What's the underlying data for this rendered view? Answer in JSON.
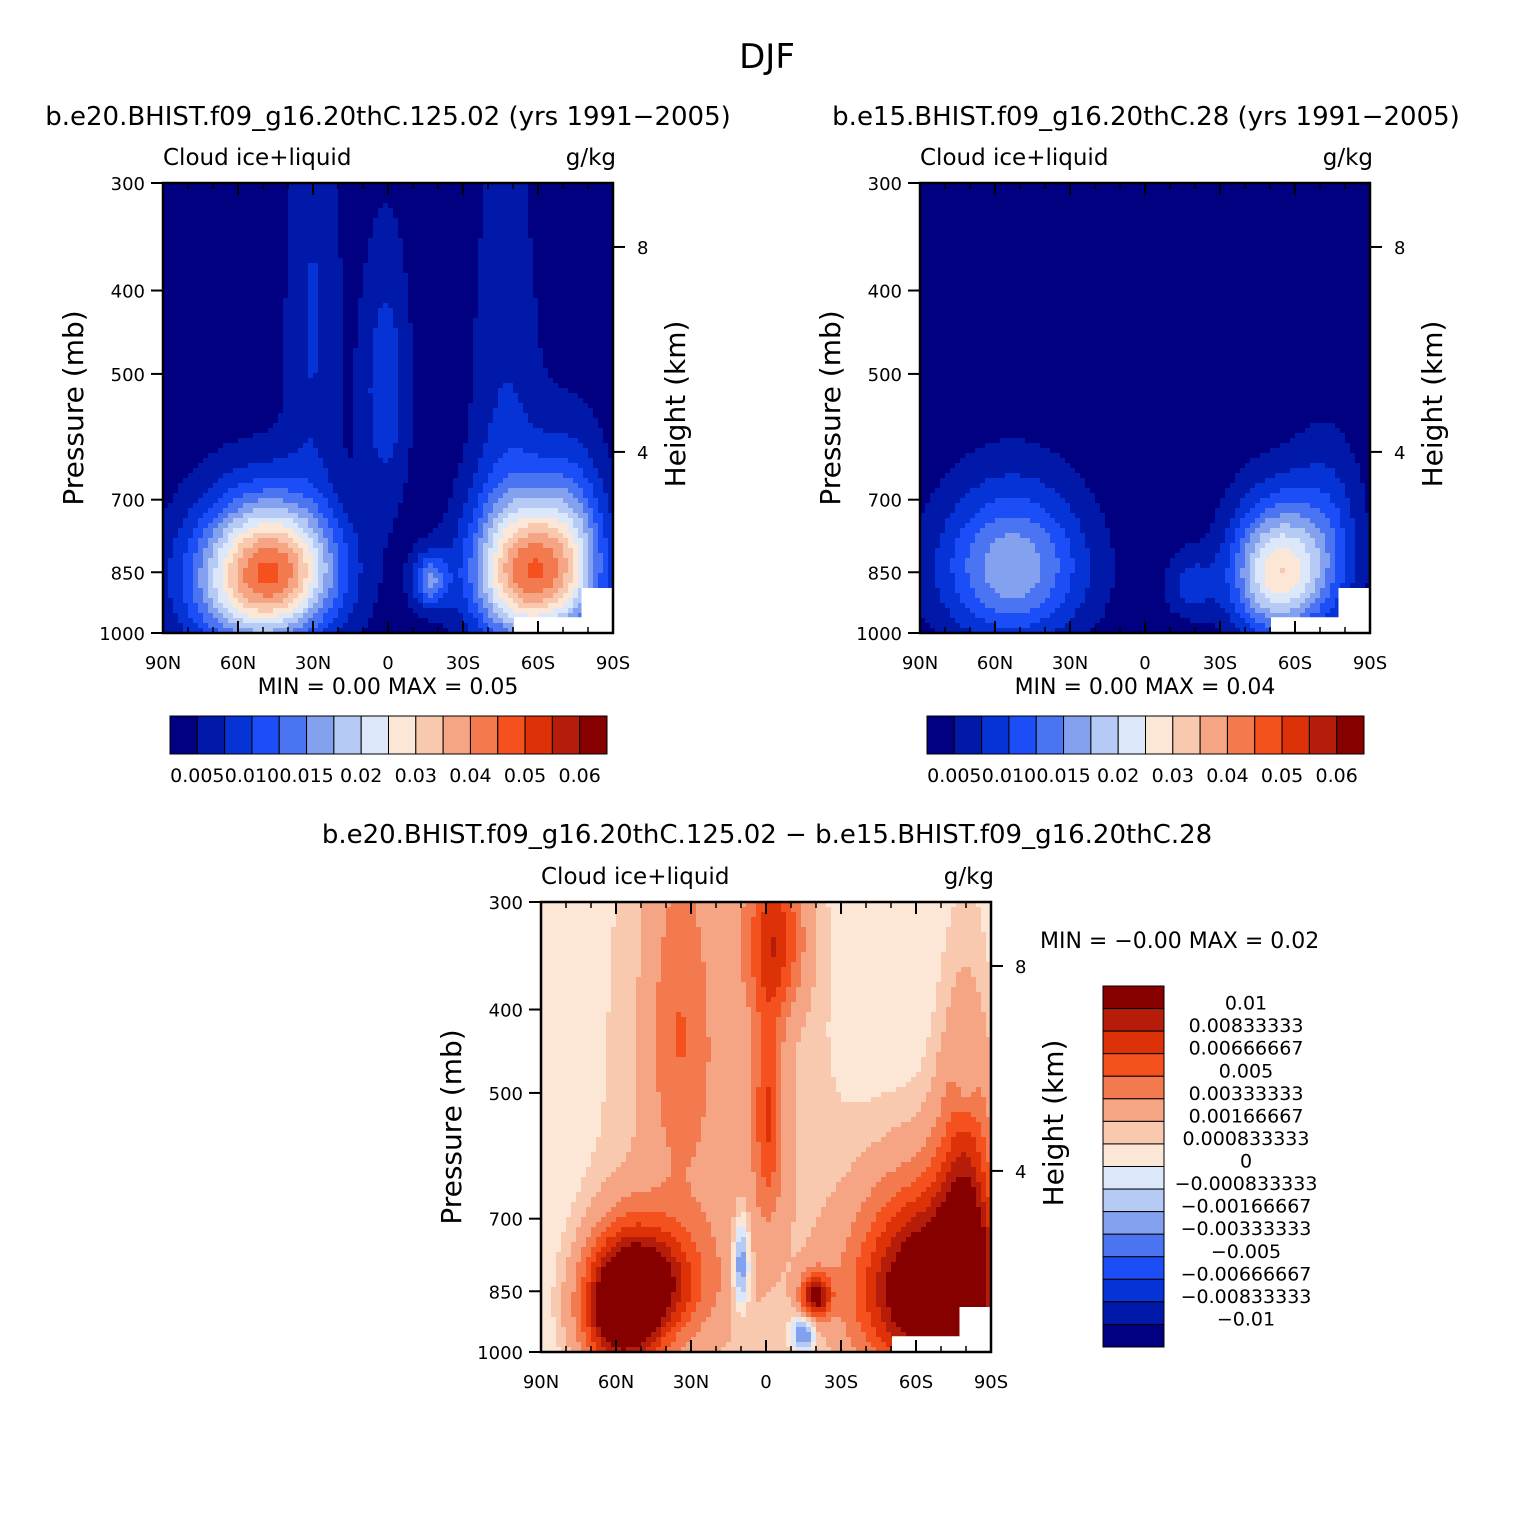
{
  "figure": {
    "title": "DJF",
    "colors": {
      "main_scale": [
        "#000080",
        "#0019A8",
        "#0533D5",
        "#1C4EF7",
        "#4A74F2",
        "#84A1F0",
        "#B5CAF4",
        "#DCE8FA",
        "#FCE6D6",
        "#F8C9AE",
        "#F5A484",
        "#F27A4E",
        "#F4511E",
        "#DD3107",
        "#B51D0A",
        "#870000"
      ],
      "diff_scale": [
        "#000080",
        "#0019A8",
        "#0533D5",
        "#1C4EF7",
        "#4A74F2",
        "#84A1F0",
        "#B5CAF4",
        "#DCE8FA",
        "#FCE6D6",
        "#F8C9AE",
        "#F5A484",
        "#F27A4E",
        "#F4511E",
        "#DD3107",
        "#B51D0A",
        "#870000"
      ]
    }
  },
  "chart_data": [
    {
      "id": "panel1",
      "type": "heatmap",
      "title": "b.e20.BHIST.f09_g16.20thC.125.02 (yrs 1991−2005)",
      "left_label": "Cloud ice+liquid",
      "right_label": "g/kg",
      "ylabel": "Pressure (mb)",
      "ylabel_right": "Height (km)",
      "x_ticks": [
        "90N",
        "60N",
        "30N",
        "0",
        "30S",
        "60S",
        "90S"
      ],
      "y_ticks": [
        "300",
        "400",
        "500",
        "700",
        "850",
        "1000"
      ],
      "y_right_ticks": [
        "8",
        "4"
      ],
      "minmax_text": "MIN =     0.00   MAX =     0.05",
      "colorbar_labels": [
        "0.005",
        "0.010",
        "0.015",
        "0.02",
        "0.03",
        "0.04",
        "0.05",
        "0.06"
      ],
      "blobs": [
        {
          "lat": 51,
          "p": 870,
          "amp": 0.045,
          "slat": 20,
          "sp": 120
        },
        {
          "lat": 43,
          "p": 820,
          "amp": 0.018,
          "slat": 16,
          "sp": 90
        },
        {
          "lat": -57,
          "p": 850,
          "amp": 0.054,
          "slat": 16,
          "sp": 115
        },
        {
          "lat": -74,
          "p": 780,
          "amp": 0.014,
          "slat": 10,
          "sp": 140
        },
        {
          "lat": 1,
          "p": 520,
          "amp": 0.012,
          "slat": 7,
          "sp": 130
        },
        {
          "lat": -17,
          "p": 870,
          "amp": 0.022,
          "slat": 5,
          "sp": 45
        },
        {
          "lat": 30,
          "p": 430,
          "amp": 0.009,
          "slat": 8,
          "sp": 180
        },
        {
          "lat": -47,
          "p": 550,
          "amp": 0.008,
          "slat": 10,
          "sp": 250
        }
      ]
    },
    {
      "id": "panel2",
      "type": "heatmap",
      "title": "b.e15.BHIST.f09_g16.20thC.28 (yrs 1991−2005)",
      "left_label": "Cloud ice+liquid",
      "right_label": "g/kg",
      "ylabel": "Pressure (mb)",
      "ylabel_right": "Height (km)",
      "x_ticks": [
        "90N",
        "60N",
        "30N",
        "0",
        "30S",
        "60S",
        "90S"
      ],
      "y_ticks": [
        "300",
        "400",
        "500",
        "700",
        "850",
        "1000"
      ],
      "y_right_ticks": [
        "8",
        "4"
      ],
      "minmax_text": "MIN =     0.00   MAX =     0.04",
      "colorbar_labels": [
        "0.005",
        "0.010",
        "0.015",
        "0.02",
        "0.03",
        "0.04",
        "0.05",
        "0.06"
      ],
      "blobs": [
        {
          "lat": 53,
          "p": 840,
          "amp": 0.028,
          "slat": 20,
          "sp": 120
        },
        {
          "lat": -53,
          "p": 850,
          "amp": 0.042,
          "slat": 13,
          "sp": 105
        },
        {
          "lat": -73,
          "p": 780,
          "amp": 0.012,
          "slat": 10,
          "sp": 130
        },
        {
          "lat": -18,
          "p": 880,
          "amp": 0.01,
          "slat": 7,
          "sp": 55
        }
      ]
    },
    {
      "id": "panel3",
      "type": "heatmap",
      "title": "b.e20.BHIST.f09_g16.20thC.125.02 − b.e15.BHIST.f09_g16.20thC.28",
      "left_label": "Cloud ice+liquid",
      "right_label": "g/kg",
      "ylabel": "Pressure (mb)",
      "ylabel_right": "Height (km)",
      "x_ticks": [
        "90N",
        "60N",
        "30N",
        "0",
        "30S",
        "60S",
        "90S"
      ],
      "y_ticks": [
        "300",
        "400",
        "500",
        "700",
        "850",
        "1000"
      ],
      "y_right_ticks": [
        "8",
        "4"
      ],
      "minmax_text": "MIN =    −0.00   MAX =     0.02",
      "colorbar_labels": [
        "0.01",
        "0.00833333",
        "0.00666667",
        "0.005",
        "0.00333333",
        "0.00166667",
        "0.000833333",
        "0",
        "−0.000833333",
        "−0.00166667",
        "−0.00333333",
        "−0.005",
        "−0.00666667",
        "−0.00833333",
        "−0.01"
      ],
      "blobs": [
        {
          "lat": 58,
          "p": 900,
          "amp": 0.012,
          "slat": 11,
          "sp": 110
        },
        {
          "lat": 45,
          "p": 830,
          "amp": 0.008,
          "slat": 14,
          "sp": 90
        },
        {
          "lat": -65,
          "p": 850,
          "amp": 0.014,
          "slat": 20,
          "sp": 150
        },
        {
          "lat": -80,
          "p": 700,
          "amp": 0.007,
          "slat": 8,
          "sp": 200
        },
        {
          "lat": -20,
          "p": 860,
          "amp": 0.01,
          "slat": 4,
          "sp": 35
        },
        {
          "lat": -1,
          "p": 530,
          "amp": 0.005,
          "slat": 4,
          "sp": 110
        },
        {
          "lat": -4,
          "p": 330,
          "amp": 0.006,
          "slat": 8,
          "sp": 50
        },
        {
          "lat": 35,
          "p": 420,
          "amp": 0.003,
          "slat": 8,
          "sp": 120
        },
        {
          "lat": 20,
          "p": 560,
          "amp": 0.0025,
          "slat": 30,
          "sp": 400
        },
        {
          "lat": 10,
          "p": 790,
          "amp": -0.0045,
          "slat": 2.5,
          "sp": 70
        },
        {
          "lat": -15,
          "p": 950,
          "amp": -0.0045,
          "slat": 3,
          "sp": 30
        },
        {
          "lat": -80,
          "p": 490,
          "amp": -0.002,
          "slat": 3,
          "sp": 30
        }
      ]
    }
  ]
}
